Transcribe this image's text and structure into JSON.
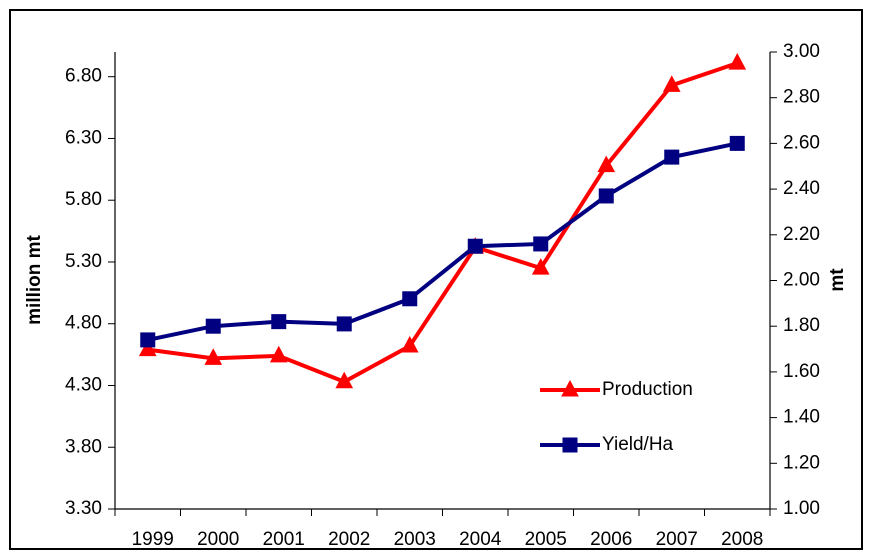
{
  "chart_data": {
    "type": "line",
    "categories": [
      "1999",
      "2000",
      "2001",
      "2002",
      "2003",
      "2004",
      "2005",
      "2006",
      "2007",
      "2008"
    ],
    "series": [
      {
        "name": "Production",
        "color": "#ff0000",
        "marker": "triangle",
        "values": [
          4.59,
          4.52,
          4.54,
          4.33,
          4.62,
          5.42,
          5.25,
          6.08,
          6.73,
          6.91
        ]
      },
      {
        "name": "Yield/Ha",
        "color": "#000080",
        "marker": "square",
        "axis": "y2",
        "values": [
          1.74,
          1.8,
          1.82,
          1.81,
          1.92,
          2.15,
          2.16,
          2.37,
          2.54,
          2.6
        ]
      }
    ],
    "ylabel": "million  mt",
    "y2label": "mt",
    "ylim": [
      3.3,
      7.0
    ],
    "yticks": [
      {
        "value": 3.3,
        "label": "3.30"
      },
      {
        "value": 3.8,
        "label": "3.80"
      },
      {
        "value": 4.3,
        "label": "4.30"
      },
      {
        "value": 4.8,
        "label": "4.80"
      },
      {
        "value": 5.3,
        "label": "5.30"
      },
      {
        "value": 5.8,
        "label": "5.80"
      },
      {
        "value": 6.3,
        "label": "6.30"
      },
      {
        "value": 6.8,
        "label": "6.80"
      }
    ],
    "y2lim": [
      1.0,
      3.0
    ],
    "y2ticks": [
      {
        "value": 1.0,
        "label": "1.00"
      },
      {
        "value": 1.2,
        "label": "1.20"
      },
      {
        "value": 1.4,
        "label": "1.40"
      },
      {
        "value": 1.6,
        "label": "1.60"
      },
      {
        "value": 1.8,
        "label": "1.80"
      },
      {
        "value": 2.0,
        "label": "2.00"
      },
      {
        "value": 2.2,
        "label": "2.20"
      },
      {
        "value": 2.4,
        "label": "2.40"
      },
      {
        "value": 2.6,
        "label": "2.60"
      },
      {
        "value": 2.8,
        "label": "2.80"
      },
      {
        "value": 3.0,
        "label": "3.00"
      }
    ],
    "grid": false,
    "legend": "lower right"
  }
}
